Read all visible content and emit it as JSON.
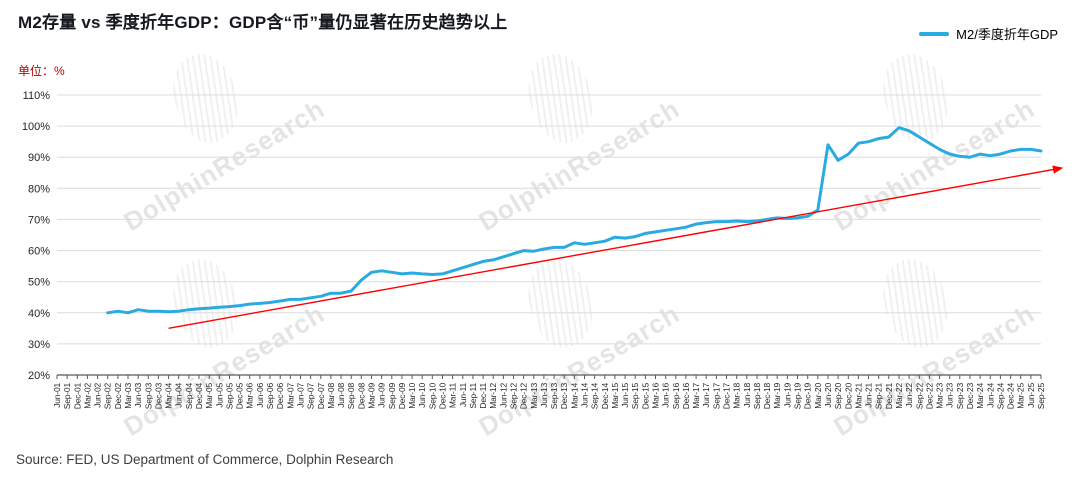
{
  "page": {
    "title": "M2存量 vs 季度折年GDP：GDP含“币”量仍显著在历史趋势以上",
    "unit_label": "单位：%",
    "source": "Source: FED, US Department of Commerce, Dolphin Research",
    "watermark_text": "DolphinResearch"
  },
  "legend": {
    "items": [
      {
        "label": "M2/季度折年GDP",
        "color": "#29ABE2"
      }
    ]
  },
  "colors": {
    "series_line": "#29ABE2",
    "trend_line": "#FF0000",
    "unit_text": "#C00000",
    "title_text": "#15181f",
    "grid": "#DCDCDC",
    "axis": "#595959"
  },
  "chart_data": {
    "type": "line",
    "title": "M2存量 vs 季度折年GDP：GDP含“币”量仍显著在历史趋势以上",
    "xlabel": "",
    "ylabel": "单位：%",
    "ylim": [
      20,
      110
    ],
    "ytick_step": 10,
    "ytick_suffix": "%",
    "grid": true,
    "legend_position": "top-right",
    "x": [
      "Jun-01",
      "Sep-01",
      "Dec-01",
      "Mar-02",
      "Jun-02",
      "Sep-02",
      "Dec-02",
      "Mar-03",
      "Jun-03",
      "Sep-03",
      "Dec-03",
      "Mar-04",
      "Jun-04",
      "Sep-04",
      "Dec-04",
      "Mar-05",
      "Jun-05",
      "Sep-05",
      "Dec-05",
      "Mar-06",
      "Jun-06",
      "Sep-06",
      "Dec-06",
      "Mar-07",
      "Jun-07",
      "Sep-07",
      "Dec-07",
      "Mar-08",
      "Jun-08",
      "Sep-08",
      "Dec-08",
      "Mar-09",
      "Jun-09",
      "Sep-09",
      "Dec-09",
      "Mar-10",
      "Jun-10",
      "Sep-10",
      "Dec-10",
      "Mar-11",
      "Jun-11",
      "Sep-11",
      "Dec-11",
      "Mar-12",
      "Jun-12",
      "Sep-12",
      "Dec-12",
      "Mar-13",
      "Jun-13",
      "Sep-13",
      "Dec-13",
      "Mar-14",
      "Jun-14",
      "Sep-14",
      "Dec-14",
      "Mar-15",
      "Jun-15",
      "Sep-15",
      "Dec-15",
      "Mar-16",
      "Jun-16",
      "Sep-16",
      "Dec-16",
      "Mar-17",
      "Jun-17",
      "Sep-17",
      "Dec-17",
      "Mar-18",
      "Jun-18",
      "Sep-18",
      "Dec-18",
      "Mar-19",
      "Jun-19",
      "Sep-19",
      "Dec-19",
      "Mar-20",
      "Jun-20",
      "Sep-20",
      "Dec-20",
      "Mar-21",
      "Jun-21",
      "Sep-21",
      "Dec-21",
      "Mar-22",
      "Jun-22",
      "Sep-22",
      "Dec-22",
      "Mar-23",
      "Jun-23",
      "Sep-23",
      "Dec-23",
      "Mar-24",
      "Jun-24",
      "Sep-24",
      "Dec-24",
      "Mar-25",
      "Jun-25",
      "Sep-25"
    ],
    "series": [
      {
        "name": "M2/季度折年GDP",
        "color": "#29ABE2",
        "values": [
          null,
          null,
          null,
          null,
          null,
          40,
          40.5,
          40,
          41,
          40.5,
          40.5,
          40.3,
          40.5,
          41,
          41.3,
          41.5,
          41.8,
          42,
          42.3,
          42.8,
          43,
          43.3,
          43.8,
          44.3,
          44.3,
          44.8,
          45.3,
          46.3,
          46.3,
          47,
          50.5,
          53,
          53.5,
          53,
          52.5,
          52.8,
          52.5,
          52.3,
          52.5,
          53.5,
          54.5,
          55.5,
          56.5,
          57,
          58,
          59,
          60,
          59.8,
          60.5,
          61,
          61,
          62.5,
          62,
          62.5,
          63,
          64.3,
          64,
          64.5,
          65.5,
          66,
          66.5,
          67,
          67.5,
          68.5,
          69,
          69.3,
          69.3,
          69.5,
          69.3,
          69.5,
          70,
          70.5,
          70.3,
          70.5,
          71,
          73,
          94,
          89,
          91,
          94.5,
          95,
          96,
          96.5,
          99.5,
          98.5,
          96.5,
          94.5,
          92.5,
          91,
          90.3,
          90,
          91,
          90.5,
          91,
          92,
          92.5,
          92.5,
          92
        ]
      }
    ],
    "trend_line": {
      "name": "历史趋势线",
      "color": "#FF0000",
      "start_index": 11,
      "start_value": 35,
      "end_index": 99,
      "end_value": 86.5,
      "arrow": true
    }
  }
}
